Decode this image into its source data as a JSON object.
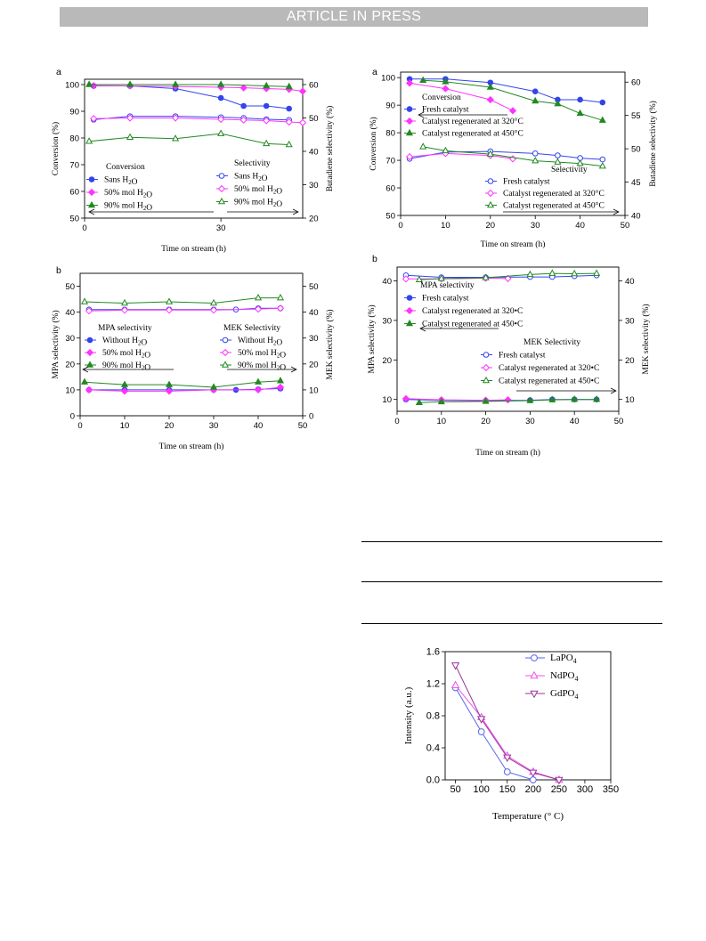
{
  "header": {
    "banner": "ARTICLE IN PRESS"
  },
  "chart_data": [
    {
      "id": "c1",
      "type": "line",
      "panel": "a",
      "xlabel": "Time on stream (h)",
      "ylabel": "Conversion (%)",
      "y2label": "Butadiene selectivity (%)",
      "xlim": [
        0,
        48
      ],
      "ylim": [
        50,
        102
      ],
      "y2lim": [
        20,
        61.6
      ],
      "xticks": [
        0,
        30
      ],
      "yticks": [
        50,
        60,
        70,
        80,
        90,
        100
      ],
      "y2ticks": [
        20,
        30,
        40,
        50,
        60
      ],
      "series": [
        {
          "name": "Sans H2O",
          "axis": "left",
          "color": "#3344ee",
          "marker": "circle",
          "filled": true,
          "x": [
            2,
            10,
            20,
            30,
            35,
            40,
            45
          ],
          "y": [
            99.5,
            99.5,
            98.5,
            95,
            92,
            92,
            91
          ]
        },
        {
          "name": "50% mol H2O",
          "axis": "left",
          "color": "#ff33ff",
          "marker": "diamond",
          "filled": true,
          "x": [
            2,
            10,
            20,
            30,
            35,
            40,
            45,
            48
          ],
          "y": [
            99.6,
            99.5,
            99.3,
            99,
            98.8,
            98.5,
            98.2,
            97.5
          ]
        },
        {
          "name": "90% mol H2O",
          "axis": "left",
          "color": "#228822",
          "marker": "triangle",
          "filled": true,
          "x": [
            1,
            10,
            20,
            30,
            40,
            45
          ],
          "y": [
            100,
            100,
            100,
            100,
            99.5,
            99.2
          ]
        },
        {
          "name": "Sans H2O",
          "axis": "right",
          "color": "#3344ee",
          "marker": "circle",
          "filled": false,
          "x": [
            2,
            10,
            20,
            30,
            35,
            40,
            45
          ],
          "y": [
            49.5,
            50.5,
            50.5,
            50.2,
            50,
            49.6,
            49.4
          ]
        },
        {
          "name": "50% mol H2O",
          "axis": "right",
          "color": "#ff33ff",
          "marker": "diamond",
          "filled": false,
          "x": [
            2,
            10,
            20,
            30,
            35,
            40,
            45,
            48
          ],
          "y": [
            49.8,
            50,
            50,
            49.6,
            49.4,
            49.2,
            48.8,
            48.6
          ]
        },
        {
          "name": "90% mol H2O",
          "axis": "right",
          "color": "#228822",
          "marker": "triangle",
          "filled": false,
          "x": [
            1,
            10,
            20,
            30,
            40,
            45
          ],
          "y": [
            43,
            44.2,
            43.8,
            45.3,
            42.3,
            42
          ]
        }
      ],
      "legends": [
        {
          "title": "Conversion",
          "entries": [
            0,
            1,
            2
          ]
        },
        {
          "title": "Selectivity",
          "entries": [
            3,
            4,
            5
          ]
        }
      ]
    },
    {
      "id": "c2",
      "type": "line",
      "panel": "a",
      "xlabel": "Time on stream (h)",
      "ylabel": "Conversion (%)",
      "y2label": "Butadiene selectivity (%)",
      "xlim": [
        0,
        50
      ],
      "ylim": [
        50,
        102
      ],
      "y2lim": [
        40,
        61.5
      ],
      "xticks": [
        0,
        10,
        20,
        30,
        40,
        50
      ],
      "yticks": [
        50,
        60,
        70,
        80,
        90,
        100
      ],
      "y2ticks": [
        40,
        45,
        50,
        55,
        60
      ],
      "series": [
        {
          "name": "Fresh catalyst",
          "axis": "left",
          "color": "#3344ee",
          "marker": "circle",
          "filled": true,
          "x": [
            2,
            10,
            20,
            30,
            35,
            40,
            45
          ],
          "y": [
            99.5,
            99.5,
            98.2,
            95,
            92,
            92,
            91
          ]
        },
        {
          "name": "Catalyst regenerated at 320°C",
          "axis": "left",
          "color": "#ff33ff",
          "marker": "diamond",
          "filled": true,
          "x": [
            2,
            10,
            20,
            25
          ],
          "y": [
            98,
            96,
            92,
            88
          ]
        },
        {
          "name": "Catalyst regenerated at 450°C",
          "axis": "left",
          "color": "#228822",
          "marker": "triangle",
          "filled": true,
          "x": [
            5,
            10,
            20,
            30,
            35,
            40,
            45
          ],
          "y": [
            99,
            98.5,
            96.5,
            91.5,
            90.5,
            87,
            84.5
          ]
        },
        {
          "name": "Fresh catalyst",
          "axis": "right",
          "color": "#3344ee",
          "marker": "circle",
          "filled": false,
          "x": [
            2,
            10,
            20,
            30,
            35,
            40,
            45
          ],
          "y": [
            48.5,
            49.5,
            49.6,
            49.3,
            49,
            48.6,
            48.4
          ]
        },
        {
          "name": "Catalyst regenerated at 320°C",
          "axis": "right",
          "color": "#ff33ff",
          "marker": "diamond",
          "filled": false,
          "x": [
            2,
            10,
            20,
            25
          ],
          "y": [
            48.8,
            49.3,
            49,
            48.5
          ]
        },
        {
          "name": "Catalyst regenerated at 450°C",
          "axis": "right",
          "color": "#228822",
          "marker": "triangle",
          "filled": false,
          "x": [
            5,
            10,
            20,
            30,
            35,
            40,
            45
          ],
          "y": [
            50.3,
            49.7,
            49.2,
            48.2,
            48,
            47.8,
            47.4
          ]
        }
      ],
      "legends": [
        {
          "title": "Conversion",
          "entries": [
            0,
            1,
            2
          ]
        },
        {
          "title": "Selectivity",
          "entries": [
            3,
            4,
            5
          ]
        }
      ]
    },
    {
      "id": "c3",
      "type": "line",
      "panel": "b",
      "xlabel": "Time on stream (h)",
      "ylabel": "MPA selectivity (%)",
      "y2label": "MEK selectivity (%)",
      "xlim": [
        0,
        50
      ],
      "ylim": [
        0,
        55
      ],
      "y2lim": [
        0,
        55
      ],
      "xticks": [
        0,
        10,
        20,
        30,
        40,
        50
      ],
      "yticks": [
        0,
        10,
        20,
        30,
        40,
        50
      ],
      "y2ticks": [
        0,
        10,
        20,
        30,
        40,
        50
      ],
      "series": [
        {
          "name": "Without H2O",
          "axis": "left",
          "color": "#3344ee",
          "marker": "circle",
          "filled": true,
          "x": [
            2,
            10,
            20,
            30,
            35,
            40,
            45
          ],
          "y": [
            10,
            10,
            10,
            10,
            10,
            10.2,
            10.5
          ]
        },
        {
          "name": "50% mol H2O",
          "axis": "left",
          "color": "#ff33ff",
          "marker": "diamond",
          "filled": true,
          "x": [
            2,
            10,
            20,
            30,
            40,
            45
          ],
          "y": [
            10,
            9.5,
            9.5,
            10,
            10,
            11
          ]
        },
        {
          "name": "90% mol H2O",
          "axis": "left",
          "color": "#228822",
          "marker": "triangle",
          "filled": true,
          "x": [
            1,
            10,
            20,
            30,
            40,
            45
          ],
          "y": [
            13,
            12,
            12,
            11,
            13,
            13.5
          ]
        },
        {
          "name": "Without H2O",
          "axis": "right",
          "color": "#3344ee",
          "marker": "circle",
          "filled": false,
          "x": [
            2,
            10,
            20,
            30,
            35,
            40,
            45
          ],
          "y": [
            41,
            41,
            41,
            41,
            41,
            41.5,
            41.5
          ]
        },
        {
          "name": "50% mol H2O",
          "axis": "right",
          "color": "#ff33ff",
          "marker": "diamond",
          "filled": false,
          "x": [
            2,
            10,
            20,
            30,
            40,
            45
          ],
          "y": [
            40.5,
            40.8,
            40.8,
            40.8,
            41.2,
            41.5
          ]
        },
        {
          "name": "90% mol H2O",
          "axis": "right",
          "color": "#228822",
          "marker": "triangle",
          "filled": false,
          "x": [
            1,
            10,
            20,
            30,
            40,
            45
          ],
          "y": [
            44,
            43.5,
            44,
            43.5,
            45.5,
            45.5
          ]
        }
      ],
      "legends": [
        {
          "title": "MPA selectivity",
          "entries": [
            0,
            1,
            2
          ]
        },
        {
          "title": "MEK Selectivity",
          "entries": [
            3,
            4,
            5
          ]
        }
      ]
    },
    {
      "id": "c4",
      "type": "line",
      "panel": "b",
      "xlabel": "Time on stream (h)",
      "ylabel": "MPA selectivity (%)",
      "y2label": "MEK selectivity (%)",
      "xlim": [
        0,
        50
      ],
      "ylim": [
        7,
        43.5
      ],
      "y2lim": [
        7,
        43.5
      ],
      "xticks": [
        0,
        10,
        20,
        30,
        40,
        50
      ],
      "yticks": [
        10,
        20,
        30,
        40
      ],
      "y2ticks": [
        10,
        20,
        30,
        40
      ],
      "series": [
        {
          "name": "Fresh catalyst",
          "axis": "left",
          "color": "#3344ee",
          "marker": "circle",
          "filled": true,
          "x": [
            2,
            10,
            20,
            30,
            35,
            40,
            45
          ],
          "y": [
            10,
            9.8,
            9.7,
            9.8,
            10,
            10,
            10
          ]
        },
        {
          "name": "Catalyst regenerated at 320•C",
          "axis": "left",
          "color": "#ff33ff",
          "marker": "diamond",
          "filled": true,
          "x": [
            2,
            10,
            20,
            25
          ],
          "y": [
            10.2,
            9.9,
            9.8,
            9.9
          ]
        },
        {
          "name": "Catalyst regenerated at 450•C",
          "axis": "left",
          "color": "#228822",
          "marker": "triangle",
          "filled": true,
          "x": [
            5,
            10,
            20,
            30,
            35,
            40,
            45
          ],
          "y": [
            9.2,
            9.4,
            9.5,
            9.7,
            9.9,
            10,
            10
          ]
        },
        {
          "name": "Fresh catalyst",
          "axis": "right",
          "color": "#3344ee",
          "marker": "circle",
          "filled": false,
          "x": [
            2,
            10,
            20,
            30,
            35,
            40,
            45
          ],
          "y": [
            41.4,
            40.9,
            40.9,
            41,
            41,
            41.2,
            41.4
          ]
        },
        {
          "name": "Catalyst regenerated at 320•C",
          "axis": "right",
          "color": "#ff33ff",
          "marker": "diamond",
          "filled": false,
          "x": [
            2,
            10,
            20,
            25
          ],
          "y": [
            40.5,
            40.5,
            40.7,
            40.6
          ]
        },
        {
          "name": "Catalyst regenerated at 450•C",
          "axis": "right",
          "color": "#228822",
          "marker": "triangle",
          "filled": false,
          "x": [
            5,
            10,
            20,
            30,
            35,
            40,
            45
          ],
          "y": [
            40.3,
            40.6,
            40.8,
            41.6,
            41.9,
            41.8,
            41.9
          ]
        }
      ],
      "legends": [
        {
          "title": "MPA selectivity",
          "entries": [
            0,
            1,
            2
          ]
        },
        {
          "title": "MEK Selectivity",
          "entries": [
            3,
            4,
            5
          ]
        }
      ]
    },
    {
      "id": "c5",
      "type": "line",
      "xlabel": "Temperature (° C)",
      "ylabel": "Intensity (a.u.)",
      "xlim": [
        30,
        350
      ],
      "ylim": [
        0,
        1.6
      ],
      "xticks": [
        50,
        100,
        150,
        200,
        250,
        300,
        350
      ],
      "yticks": [
        0.0,
        0.4,
        0.8,
        1.2,
        1.6
      ],
      "series": [
        {
          "name": "LaPO4",
          "axis": "left",
          "color": "#5566ee",
          "marker": "circle",
          "filled": false,
          "x": [
            50,
            100,
            150,
            200
          ],
          "y": [
            1.15,
            0.6,
            0.1,
            0.0
          ]
        },
        {
          "name": "NdPO4",
          "axis": "left",
          "color": "#ee55ee",
          "marker": "triangle",
          "filled": false,
          "x": [
            50,
            100,
            150,
            200,
            250
          ],
          "y": [
            1.18,
            0.78,
            0.3,
            0.1,
            0.0
          ]
        },
        {
          "name": "GdPO4",
          "axis": "left",
          "color": "#993399",
          "marker": "triangle-down",
          "filled": false,
          "x": [
            50,
            100,
            150,
            200,
            250
          ],
          "y": [
            1.43,
            0.76,
            0.28,
            0.09,
            0.0
          ]
        }
      ],
      "legends": [
        {
          "title": "",
          "entries": [
            0,
            1,
            2
          ]
        }
      ]
    }
  ]
}
